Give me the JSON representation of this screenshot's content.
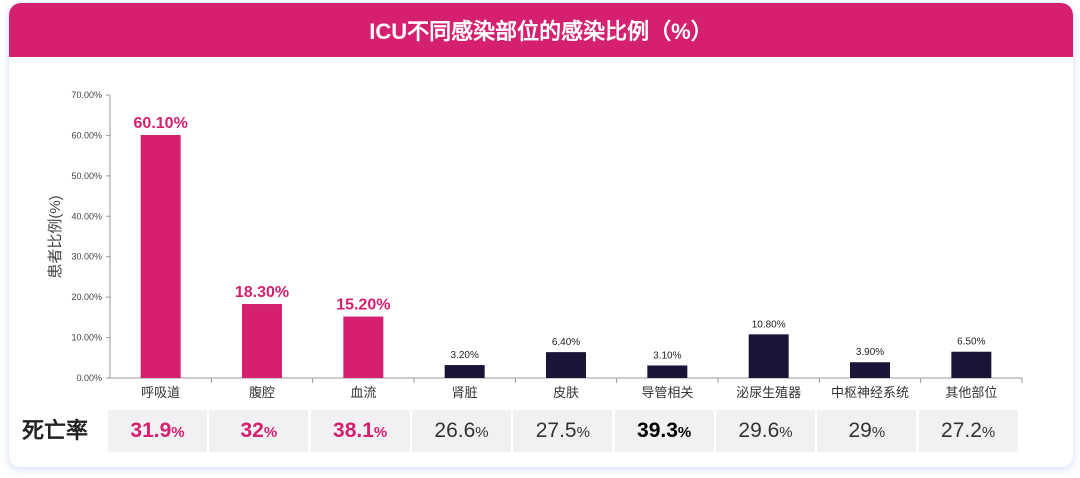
{
  "title": "ICU不同感染部位的感染比例（%）",
  "colors": {
    "accent": "#d4206f",
    "dark": "#1c1438",
    "cell_bg": "#f1f1f4"
  },
  "chart_data": {
    "type": "bar",
    "title": "ICU不同感染部位的感染比例（%）",
    "ylabel": "患者比例(%)",
    "xlabel": "",
    "ylim": [
      0,
      70
    ],
    "yticks": [
      "0.00%",
      "10.00%",
      "20.00%",
      "30.00%",
      "40.00%",
      "50.00%",
      "60.00%",
      "70.00%"
    ],
    "categories": [
      "呼吸道",
      "腹腔",
      "血流",
      "肾脏",
      "皮肤",
      "导管相关",
      "泌尿生殖器",
      "中枢神经系统",
      "其他部位"
    ],
    "values": [
      60.1,
      18.3,
      15.2,
      3.2,
      6.4,
      3.1,
      10.8,
      3.9,
      6.5
    ],
    "labels": [
      "60.10%",
      "18.30%",
      "15.20%",
      "3.20%",
      "6.40%",
      "3.10%",
      "10.80%",
      "3.90%",
      "6.50%"
    ],
    "highlight": [
      true,
      true,
      true,
      false,
      false,
      false,
      false,
      false,
      false
    ],
    "grid": false
  },
  "mortality": {
    "label": "死亡率",
    "unit": "%",
    "values": [
      "31.9",
      "32",
      "38.1",
      "26.6",
      "27.5",
      "39.3",
      "29.6",
      "29",
      "27.2"
    ],
    "styles": [
      "pink",
      "pink",
      "pink",
      "",
      "",
      "black",
      "",
      "",
      ""
    ]
  }
}
